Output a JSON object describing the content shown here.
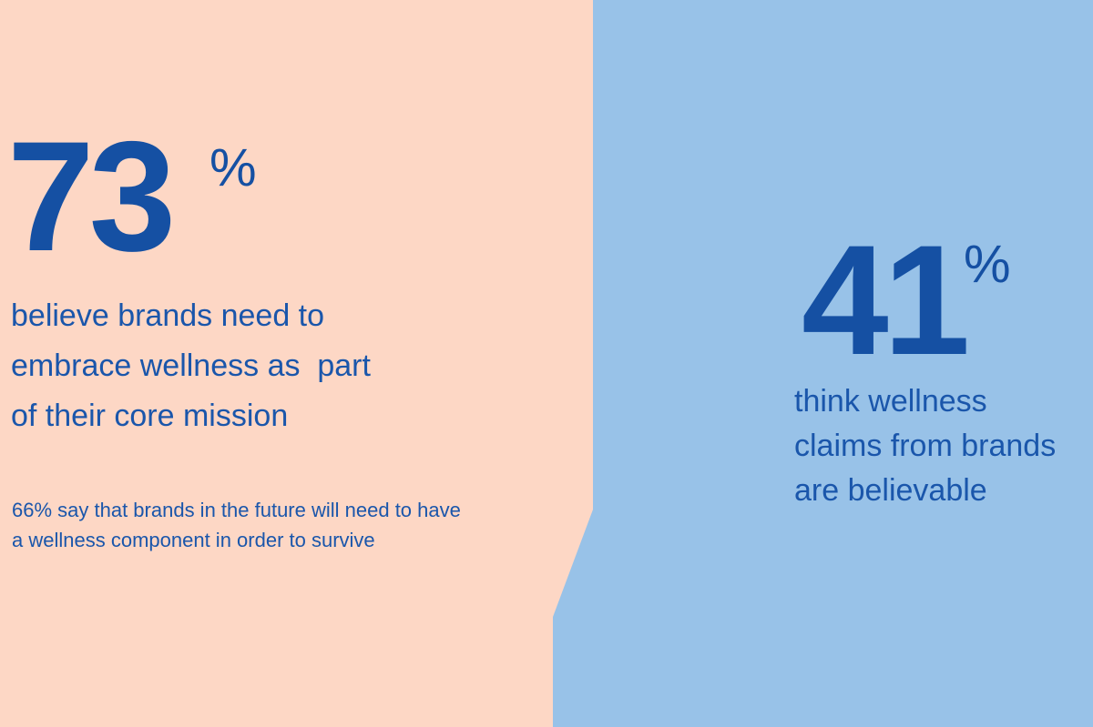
{
  "colors": {
    "left_panel": "#fdd7c5",
    "right_panel": "#98c2e8",
    "accent_text": "#1550a3"
  },
  "left_stat": {
    "number": "73",
    "percent_sign": "%",
    "description_lines": [
      "believe brands need to",
      "embrace wellness as  part",
      "of their core mission"
    ]
  },
  "footnote": {
    "line1": "66% say that brands in the future will need to have",
    "line2_start": "a wellness component",
    "line2_emphasis": " in order to survive"
  },
  "right_stat": {
    "number": "41",
    "percent_sign": "%",
    "description_lines": [
      "think wellness",
      "claims from brands",
      "are believable"
    ]
  }
}
